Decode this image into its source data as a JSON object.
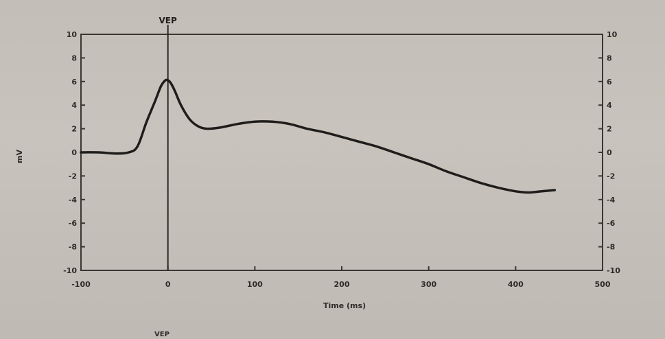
{
  "chart_data": {
    "type": "line",
    "title": "",
    "xlabel": "Time (ms)",
    "ylabel": "mV",
    "xlim": [
      -100,
      500
    ],
    "ylim": [
      -10,
      10
    ],
    "x_ticks": [
      -100,
      0,
      100,
      200,
      300,
      400,
      500
    ],
    "y_ticks": [
      10,
      8,
      6,
      4,
      2,
      0,
      -2,
      -4,
      -6,
      -8,
      -10
    ],
    "grid": false,
    "marker": {
      "label": "VEP",
      "x": 0
    },
    "footer_label": "VEP",
    "series": [
      {
        "x": [
          -100,
          -80,
          -60,
          -45,
          -35,
          -25,
          -15,
          -8,
          -3,
          0,
          3,
          8,
          15,
          25,
          35,
          45,
          60,
          80,
          100,
          120,
          140,
          160,
          180,
          200,
          220,
          240,
          260,
          280,
          300,
          320,
          340,
          360,
          380,
          400,
          415,
          430,
          445
        ],
        "y": [
          0.0,
          0.0,
          -0.1,
          0.0,
          0.5,
          2.5,
          4.3,
          5.6,
          6.1,
          6.1,
          5.9,
          5.2,
          4.0,
          2.8,
          2.2,
          2.0,
          2.1,
          2.4,
          2.6,
          2.6,
          2.4,
          2.0,
          1.7,
          1.3,
          0.9,
          0.5,
          0.0,
          -0.5,
          -1.0,
          -1.6,
          -2.1,
          -2.6,
          -3.0,
          -3.3,
          -3.4,
          -3.3,
          -3.2
        ],
        "color": "#1f1d1b"
      }
    ]
  }
}
